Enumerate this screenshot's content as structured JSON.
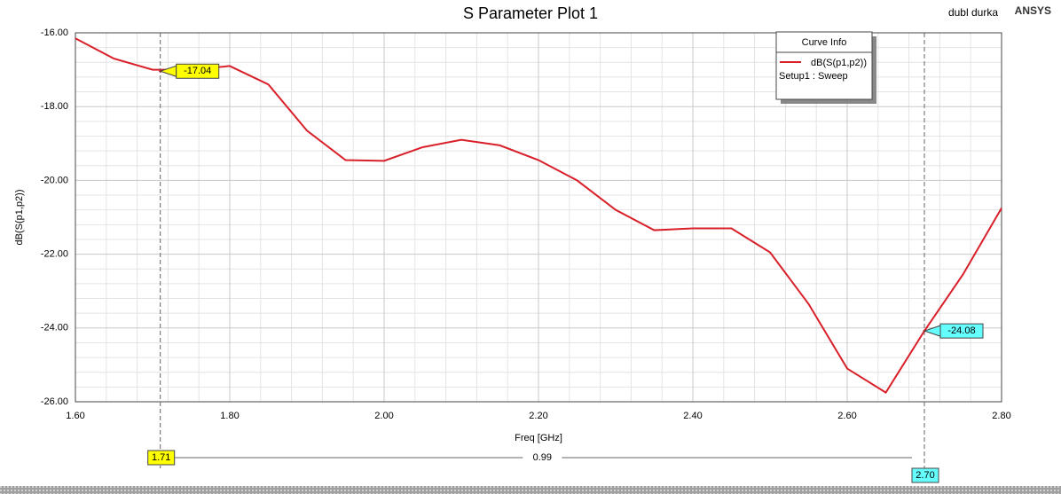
{
  "chart_data": {
    "type": "line",
    "title": "S Parameter Plot 1",
    "header_note": "dubl durka",
    "brand": "ANSYS",
    "x_label": "Freq [GHz]",
    "y_label": "dB(S(p1,p2))",
    "x": [
      1.6,
      1.65,
      1.7,
      1.75,
      1.8,
      1.85,
      1.9,
      1.95,
      2.0,
      2.05,
      2.1,
      2.15,
      2.2,
      2.25,
      2.3,
      2.35,
      2.4,
      2.45,
      2.5,
      2.55,
      2.6,
      2.65,
      2.7,
      2.75,
      2.8
    ],
    "series": [
      {
        "name": "dB(S(p1,p2))",
        "color": "#d9202a",
        "values": [
          -16.15,
          -16.7,
          -17.0,
          -17.0,
          -16.9,
          -17.4,
          -18.65,
          -19.45,
          -19.47,
          -19.1,
          -18.9,
          -19.05,
          -19.45,
          -20.0,
          -20.8,
          -21.35,
          -21.3,
          -21.3,
          -21.95,
          -23.35,
          -25.1,
          -25.75,
          -24.08,
          -22.55,
          -20.75
        ]
      }
    ],
    "legend": {
      "title": "Curve Info",
      "setup": "Setup1 : Sweep",
      "position": "top-right"
    },
    "xlim": [
      1.6,
      2.8
    ],
    "xticks": [
      {
        "value": 1.6,
        "label": "1.60"
      },
      {
        "value": 1.8,
        "label": "1.80"
      },
      {
        "value": 2.0,
        "label": "2.00"
      },
      {
        "value": 2.2,
        "label": "2.20"
      },
      {
        "value": 2.4,
        "label": "2.40"
      },
      {
        "value": 2.6,
        "label": "2.60"
      },
      {
        "value": 2.8,
        "label": "2.80"
      }
    ],
    "ylim": [
      -26,
      -16
    ],
    "yticks": [
      {
        "value": -16,
        "label": "-16.00"
      },
      {
        "value": -18,
        "label": "-18.00"
      },
      {
        "value": -20,
        "label": "-20.00"
      },
      {
        "value": -22,
        "label": "-22.00"
      },
      {
        "value": -24,
        "label": "-24.00"
      },
      {
        "value": -26,
        "label": "-26.00"
      }
    ],
    "grid": true,
    "markers": [
      {
        "x": {
          "value": 1.71,
          "label": "1.71"
        },
        "y": -17.04,
        "color": "#ffff00"
      },
      {
        "x": {
          "value": 2.7,
          "label": "2.70"
        },
        "y": -24.08,
        "color": "#66ffff"
      }
    ],
    "delta": 0.99
  }
}
